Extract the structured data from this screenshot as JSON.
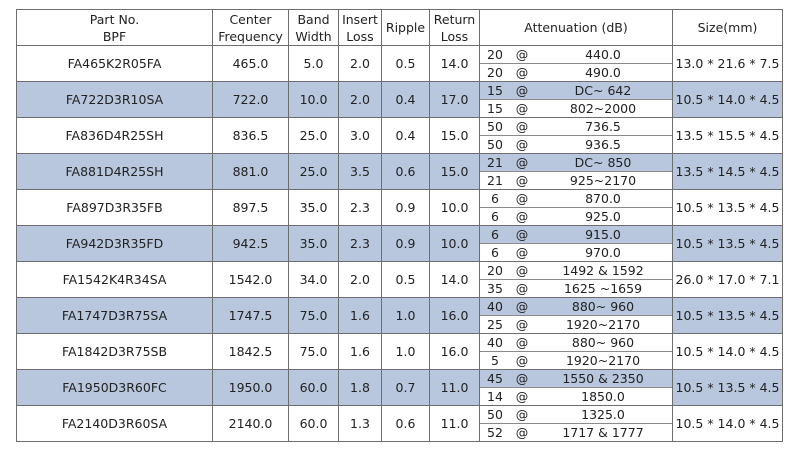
{
  "headers": {
    "part_no": [
      "Part No.",
      "BPF"
    ],
    "center_freq": [
      "Center",
      "Frequency"
    ],
    "bandwidth": [
      "Band",
      "Width"
    ],
    "insert_loss": [
      "Insert",
      "Loss"
    ],
    "ripple": "Ripple",
    "return_loss": [
      "Return",
      "Loss"
    ],
    "attenuation": "Attenuation (dB)",
    "size": "Size(mm)"
  },
  "rows": [
    {
      "part": "FA465K2R05FA",
      "center": "465.0",
      "bw": "5.0",
      "il": "2.0",
      "ripple": "0.5",
      "rl": "14.0",
      "att": [
        {
          "db": "20",
          "at": "@",
          "range": "440.0"
        },
        {
          "db": "20",
          "at": "@",
          "range": "490.0"
        }
      ],
      "size": "13.0 * 21.6 * 7.5",
      "shaded": false
    },
    {
      "part": "FA722D3R10SA",
      "center": "722.0",
      "bw": "10.0",
      "il": "2.0",
      "ripple": "0.4",
      "rl": "17.0",
      "att": [
        {
          "db": "15",
          "at": "@",
          "range": "DC~ 642"
        },
        {
          "db": "15",
          "at": "@",
          "range": "802~2000"
        }
      ],
      "size": "10.5 * 14.0 * 4.5",
      "shaded": true
    },
    {
      "part": "FA836D4R25SH",
      "center": "836.5",
      "bw": "25.0",
      "il": "3.0",
      "ripple": "0.4",
      "rl": "15.0",
      "att": [
        {
          "db": "50",
          "at": "@",
          "range": "736.5"
        },
        {
          "db": "50",
          "at": "@",
          "range": "936.5"
        }
      ],
      "size": "13.5 * 15.5 * 4.5",
      "shaded": false
    },
    {
      "part": "FA881D4R25SH",
      "center": "881.0",
      "bw": "25.0",
      "il": "3.5",
      "ripple": "0.6",
      "rl": "15.0",
      "att": [
        {
          "db": "21",
          "at": "@",
          "range": "DC~ 850"
        },
        {
          "db": "21",
          "at": "@",
          "range": "925~2170"
        }
      ],
      "size": "13.5 * 14.5 * 4.5",
      "shaded": true
    },
    {
      "part": "FA897D3R35FB",
      "center": "897.5",
      "bw": "35.0",
      "il": "2.3",
      "ripple": "0.9",
      "rl": "10.0",
      "att": [
        {
          "db": "6",
          "at": "@",
          "range": "870.0"
        },
        {
          "db": "6",
          "at": "@",
          "range": "925.0"
        }
      ],
      "size": "10.5 * 13.5 * 4.5",
      "shaded": false
    },
    {
      "part": "FA942D3R35FD",
      "center": "942.5",
      "bw": "35.0",
      "il": "2.3",
      "ripple": "0.9",
      "rl": "10.0",
      "att": [
        {
          "db": "6",
          "at": "@",
          "range": "915.0"
        },
        {
          "db": "6",
          "at": "@",
          "range": "970.0"
        }
      ],
      "size": "10.5 * 13.5 * 4.5",
      "shaded": true
    },
    {
      "part": "FA1542K4R34SA",
      "center": "1542.0",
      "bw": "34.0",
      "il": "2.0",
      "ripple": "0.5",
      "rl": "14.0",
      "att": [
        {
          "db": "20",
          "at": "@",
          "range": "1492 & 1592"
        },
        {
          "db": "35",
          "at": "@",
          "range": "1625 ~1659"
        }
      ],
      "size": "26.0 * 17.0 * 7.1",
      "shaded": false
    },
    {
      "part": "FA1747D3R75SA",
      "center": "1747.5",
      "bw": "75.0",
      "il": "1.6",
      "ripple": "1.0",
      "rl": "16.0",
      "att": [
        {
          "db": "40",
          "at": "@",
          "range": "880~ 960"
        },
        {
          "db": "25",
          "at": "@",
          "range": "1920~2170"
        }
      ],
      "size": "10.5 * 13.5 * 4.5",
      "shaded": true
    },
    {
      "part": "FA1842D3R75SB",
      "center": "1842.5",
      "bw": "75.0",
      "il": "1.6",
      "ripple": "1.0",
      "rl": "16.0",
      "att": [
        {
          "db": "40",
          "at": "@",
          "range": "880~ 960"
        },
        {
          "db": "5",
          "at": "@",
          "range": "1920~2170"
        }
      ],
      "size": "10.5 * 14.0 * 4.5",
      "shaded": false
    },
    {
      "part": "FA1950D3R60FC",
      "center": "1950.0",
      "bw": "60.0",
      "il": "1.8",
      "ripple": "0.7",
      "rl": "11.0",
      "att": [
        {
          "db": "45",
          "at": "@",
          "range": "1550 & 2350"
        },
        {
          "db": "14",
          "at": "@",
          "range": "1850.0"
        }
      ],
      "size": "10.5 * 13.5 * 4.5",
      "shaded": true
    },
    {
      "part": "FA2140D3R60SA",
      "center": "2140.0",
      "bw": "60.0",
      "il": "1.3",
      "ripple": "0.6",
      "rl": "11.0",
      "att": [
        {
          "db": "50",
          "at": "@",
          "range": "1325.0"
        },
        {
          "db": "52",
          "at": "@",
          "range": "1717 & 1777"
        }
      ],
      "size": "10.5 * 14.0 * 4.5",
      "shaded": false
    }
  ],
  "colors": {
    "row_shade": "#b8c7dd",
    "border": "#6e6e6e"
  }
}
